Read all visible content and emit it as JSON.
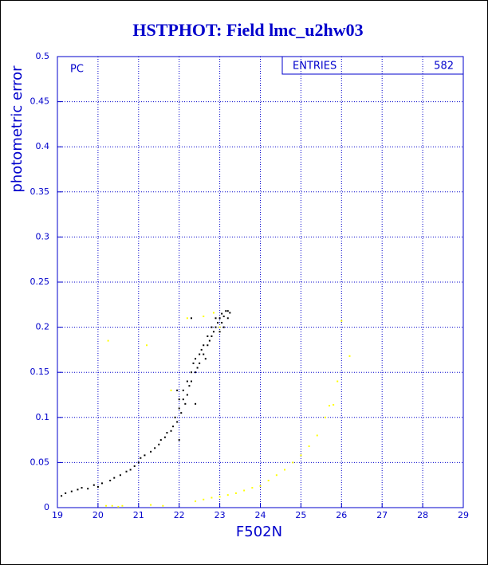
{
  "chart_data": {
    "type": "scatter",
    "title": "HSTPHOT: Field lmc_u2hw03",
    "x_label": "F502N",
    "y_label": "photometric error",
    "annotation": "PC",
    "stats": {
      "label": "ENTRIES",
      "value": 582
    },
    "xlim": [
      19,
      29
    ],
    "xticks": [
      19,
      20,
      21,
      22,
      23,
      24,
      25,
      26,
      27,
      28,
      29
    ],
    "ylim": [
      0,
      0.5
    ],
    "yticks": [
      0,
      0.05,
      0.1,
      0.15,
      0.2,
      0.25,
      0.3,
      0.35,
      0.4,
      0.45,
      0.5
    ],
    "grid": true,
    "series": [
      {
        "color": "#000000",
        "x": [
          19.1,
          19.2,
          19.35,
          19.5,
          19.6,
          19.75,
          19.9,
          20.0,
          20.1,
          20.3,
          20.4,
          20.55,
          20.7,
          20.8,
          20.9,
          21.0,
          21.05,
          21.15,
          21.3,
          21.4,
          21.5,
          21.55,
          21.65,
          21.7,
          21.8,
          21.85,
          21.9,
          21.95,
          22.0,
          22.0,
          22.05,
          22.1,
          22.1,
          22.15,
          22.2,
          22.2,
          22.25,
          22.3,
          22.3,
          22.35,
          22.4,
          22.4,
          22.45,
          22.5,
          22.5,
          22.55,
          22.6,
          22.6,
          22.65,
          22.7,
          22.7,
          22.75,
          22.8,
          22.8,
          22.85,
          22.9,
          22.9,
          22.95,
          23.0,
          23.0,
          23.05,
          23.05,
          23.1,
          23.1,
          23.15,
          23.2,
          23.2,
          23.25,
          22.0,
          22.3,
          21.95,
          22.4
        ],
        "values": [
          0.013,
          0.016,
          0.018,
          0.02,
          0.022,
          0.021,
          0.025,
          0.023,
          0.027,
          0.03,
          0.033,
          0.036,
          0.04,
          0.042,
          0.046,
          0.05,
          0.055,
          0.058,
          0.062,
          0.066,
          0.07,
          0.075,
          0.078,
          0.083,
          0.085,
          0.09,
          0.1,
          0.095,
          0.11,
          0.12,
          0.105,
          0.12,
          0.13,
          0.115,
          0.125,
          0.14,
          0.135,
          0.14,
          0.15,
          0.16,
          0.15,
          0.165,
          0.155,
          0.17,
          0.16,
          0.175,
          0.17,
          0.18,
          0.165,
          0.18,
          0.19,
          0.185,
          0.19,
          0.2,
          0.195,
          0.2,
          0.21,
          0.205,
          0.21,
          0.195,
          0.215,
          0.205,
          0.2,
          0.212,
          0.218,
          0.21,
          0.218,
          0.216,
          0.075,
          0.21,
          0.13,
          0.115
        ]
      },
      {
        "color": "#ffff00",
        "x": [
          20.2,
          20.35,
          20.5,
          20.6,
          21.3,
          21.6,
          22.4,
          22.6,
          22.8,
          23.0,
          23.2,
          23.4,
          23.6,
          23.8,
          24.0,
          24.2,
          24.4,
          24.6,
          24.8,
          25.0,
          25.2,
          25.4,
          25.6,
          25.7,
          25.8,
          25.9,
          26.0,
          26.2,
          20.25,
          21.2,
          22.2,
          22.6,
          22.85,
          23.0,
          21.8
        ],
        "values": [
          0.002,
          0.002,
          0.001,
          0.002,
          0.003,
          0.002,
          0.007,
          0.009,
          0.011,
          0.012,
          0.014,
          0.016,
          0.019,
          0.022,
          0.024,
          0.03,
          0.036,
          0.042,
          0.05,
          0.058,
          0.068,
          0.08,
          0.1,
          0.113,
          0.114,
          0.14,
          0.207,
          0.168,
          0.185,
          0.18,
          0.21,
          0.212,
          0.216,
          0.2,
          0.13
        ]
      }
    ]
  }
}
